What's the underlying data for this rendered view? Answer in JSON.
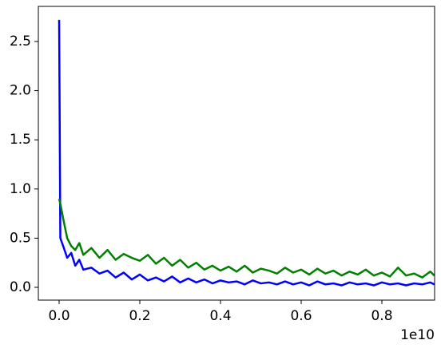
{
  "chart_data": {
    "type": "line",
    "x": [
      0,
      0.003,
      0.01,
      0.02,
      0.03,
      0.04,
      0.05,
      0.06,
      0.08,
      0.1,
      0.12,
      0.14,
      0.16,
      0.18,
      0.2,
      0.22,
      0.24,
      0.26,
      0.28,
      0.3,
      0.32,
      0.34,
      0.36,
      0.38,
      0.4,
      0.42,
      0.44,
      0.46,
      0.48,
      0.5,
      0.52,
      0.54,
      0.56,
      0.58,
      0.6,
      0.62,
      0.64,
      0.66,
      0.68,
      0.7,
      0.72,
      0.74,
      0.76,
      0.78,
      0.8,
      0.82,
      0.84,
      0.86,
      0.88,
      0.9,
      0.92,
      0.93
    ],
    "series": [
      {
        "color": "#0000ff",
        "values": [
          2.72,
          0.5,
          0.42,
          0.3,
          0.35,
          0.22,
          0.28,
          0.18,
          0.2,
          0.14,
          0.17,
          0.1,
          0.15,
          0.08,
          0.13,
          0.07,
          0.1,
          0.06,
          0.11,
          0.05,
          0.09,
          0.05,
          0.08,
          0.04,
          0.07,
          0.05,
          0.06,
          0.03,
          0.07,
          0.04,
          0.05,
          0.03,
          0.06,
          0.03,
          0.05,
          0.02,
          0.06,
          0.03,
          0.04,
          0.02,
          0.05,
          0.03,
          0.04,
          0.02,
          0.05,
          0.03,
          0.04,
          0.02,
          0.04,
          0.03,
          0.05,
          0.03
        ]
      },
      {
        "color": "#008000",
        "values": [
          0.9,
          0.85,
          0.7,
          0.5,
          0.42,
          0.38,
          0.45,
          0.33,
          0.4,
          0.3,
          0.38,
          0.28,
          0.34,
          0.3,
          0.27,
          0.33,
          0.24,
          0.3,
          0.22,
          0.28,
          0.2,
          0.25,
          0.18,
          0.22,
          0.17,
          0.21,
          0.16,
          0.22,
          0.15,
          0.19,
          0.17,
          0.14,
          0.2,
          0.15,
          0.18,
          0.13,
          0.19,
          0.14,
          0.17,
          0.12,
          0.16,
          0.13,
          0.18,
          0.12,
          0.15,
          0.11,
          0.2,
          0.12,
          0.14,
          0.1,
          0.16,
          0.12
        ]
      }
    ],
    "xlim": [
      -0.0515,
      0.9307
    ],
    "ylim": [
      -0.13,
      2.857
    ],
    "xticks": [
      {
        "value": 0,
        "label": "0.0"
      },
      0.2,
      0.4,
      0.6,
      0.8
    ],
    "yticks": [
      {
        "value": 0,
        "label": "0.0"
      },
      0.5,
      {
        "value": 1,
        "label": "1.0"
      },
      1.5,
      {
        "value": 2,
        "label": "2.0"
      },
      2.5
    ],
    "x_offset_label": "1e10"
  }
}
